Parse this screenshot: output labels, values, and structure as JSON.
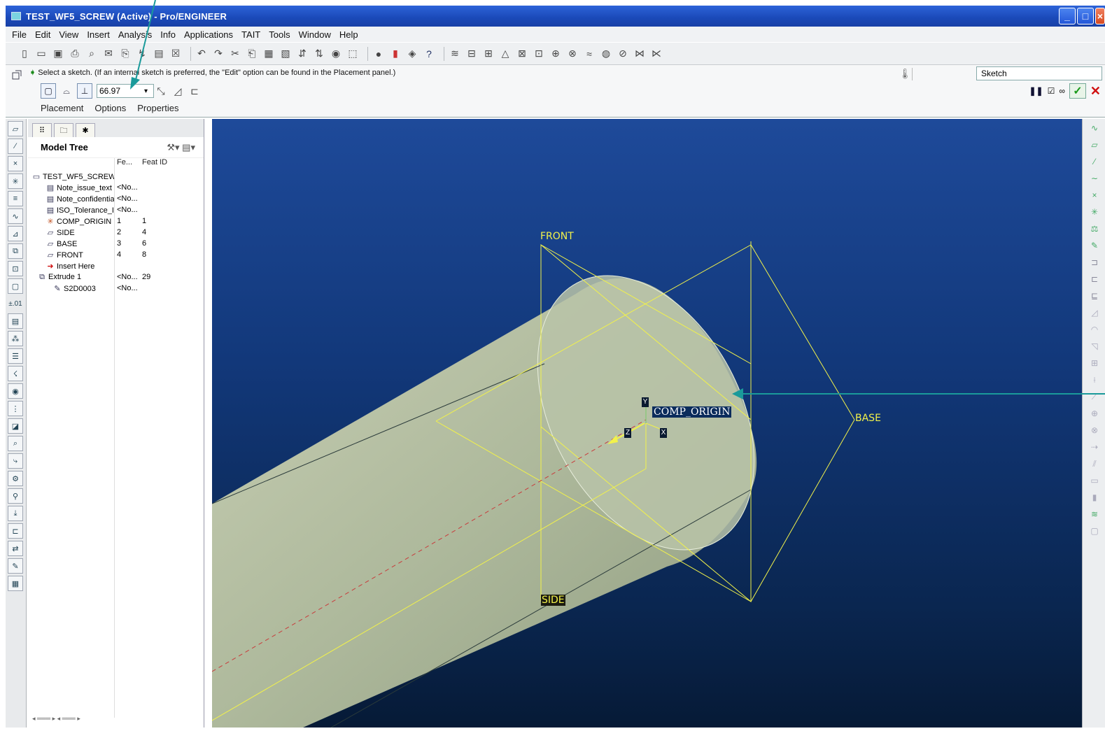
{
  "window": {
    "title": "TEST_WF5_SCREW (Active) - Pro/ENGINEER"
  },
  "menu": [
    "File",
    "Edit",
    "View",
    "Insert",
    "Analysis",
    "Info",
    "Applications",
    "TAIT",
    "Tools",
    "Window",
    "Help"
  ],
  "dashboard": {
    "message": "Select a sketch. (If an internal sketch is preferred, the \"Edit\" option can be found in the Placement panel.)",
    "depth_value": "66.97",
    "filter": "Sketch",
    "tabs": [
      "Placement",
      "Options",
      "Properties"
    ]
  },
  "model_tree": {
    "title": "Model Tree",
    "columns": [
      "Fe...",
      "Feat ID"
    ],
    "rows": [
      {
        "name": "TEST_WF5_SCREW",
        "fe": "",
        "fid": "",
        "icon": "part-icon"
      },
      {
        "name": "Note_issue_text",
        "fe": "<No...",
        "fid": "",
        "icon": "note-icon"
      },
      {
        "name": "Note_confidentia",
        "fe": "<No...",
        "fid": "",
        "icon": "note-icon"
      },
      {
        "name": "ISO_Tolerance_I",
        "fe": "<No...",
        "fid": "",
        "icon": "note-icon"
      },
      {
        "name": "COMP_ORIGIN",
        "fe": "1",
        "fid": "1",
        "icon": "csys-icon"
      },
      {
        "name": "SIDE",
        "fe": "2",
        "fid": "4",
        "icon": "datum-plane-icon"
      },
      {
        "name": "BASE",
        "fe": "3",
        "fid": "6",
        "icon": "datum-plane-icon"
      },
      {
        "name": "FRONT",
        "fe": "4",
        "fid": "8",
        "icon": "datum-plane-icon"
      },
      {
        "name": "Insert Here",
        "fe": "",
        "fid": "",
        "icon": "insert-arrow-icon"
      },
      {
        "name": "Extrude 1",
        "fe": "<No...",
        "fid": "29",
        "icon": "extrude-icon"
      },
      {
        "name": "S2D0003",
        "fe": "<No...",
        "fid": "",
        "icon": "sketch-icon"
      }
    ]
  },
  "viewport": {
    "labels": {
      "front": "FRONT",
      "base": "BASE",
      "side": "SIDE",
      "origin": "COMP_ORIGIN",
      "x": "X",
      "y": "Y",
      "z": "Z"
    },
    "colors": {
      "datum": "#f2f24a",
      "solid": "#b8c4a6",
      "accent_arrow": "#1a9a9a"
    }
  },
  "left_toolbar_labels": {
    "tolerance": "±.01"
  }
}
